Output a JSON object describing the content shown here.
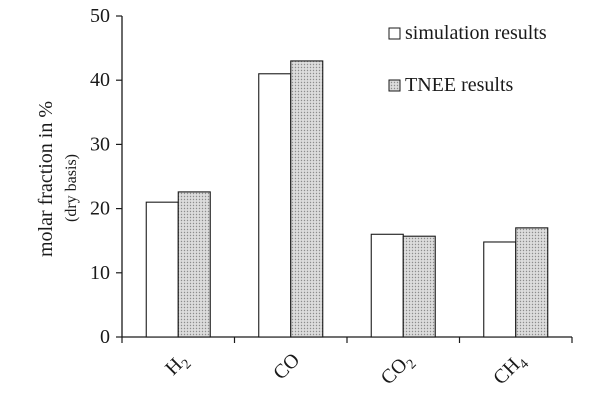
{
  "chart_data": {
    "type": "bar",
    "categories": [
      {
        "base": "H",
        "sub": "2"
      },
      {
        "base": "CO",
        "sub": ""
      },
      {
        "base": "CO",
        "sub": "2"
      },
      {
        "base": "CH",
        "sub": "4"
      }
    ],
    "series": [
      {
        "name": "simulation results",
        "values": [
          21.0,
          41.0,
          16.0,
          14.8
        ],
        "fill": "#ffffff",
        "pattern": "none"
      },
      {
        "name": "TNEE results",
        "values": [
          22.6,
          43.0,
          15.7,
          17.0
        ],
        "fill": "#d4d4d4",
        "pattern": "dotted"
      }
    ],
    "ylabel": "molar fraction in  %",
    "ylabel_sub": "(dry basis)",
    "ylim": [
      0,
      50
    ],
    "yticks": [
      0,
      10,
      20,
      30,
      40,
      50
    ],
    "grid": false,
    "legend_position": "top-right",
    "colors": {
      "axis": "#1a1a1a",
      "bar_stroke": "#1a1a1a"
    }
  }
}
